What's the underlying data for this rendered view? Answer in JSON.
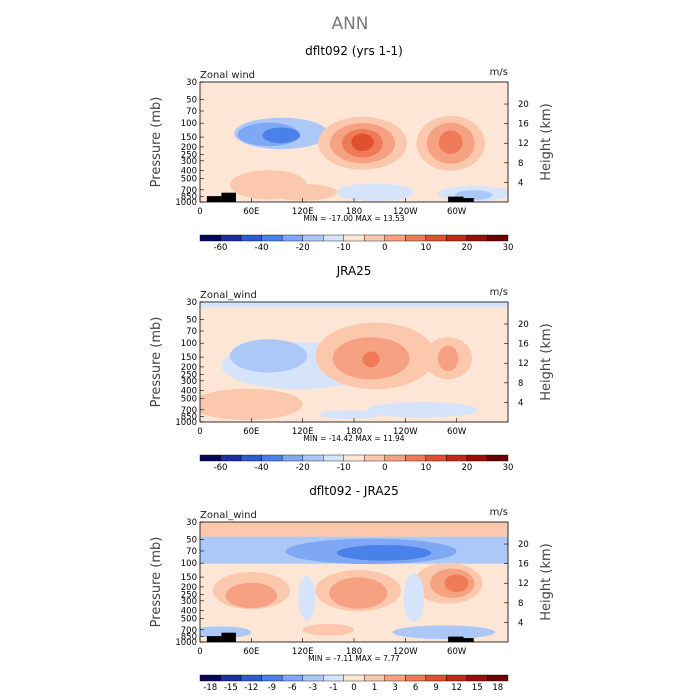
{
  "page": {
    "title": "ANN"
  },
  "chart_data": [
    {
      "type": "heatmap",
      "title": "dflt092 (yrs 1-1)",
      "field_label": "Zonal wind",
      "units": "m/s",
      "ylabel": "Pressure (mb)",
      "y2label": "Height (km)",
      "x_ticks": [
        "0",
        "60E",
        "120E",
        "180",
        "120W",
        "60W"
      ],
      "y_ticks": [
        "30",
        "50",
        "70",
        "100",
        "150",
        "200",
        "250",
        "300",
        "400",
        "500",
        "700",
        "850",
        "1000"
      ],
      "y2_ticks": [
        "20",
        "16",
        "12",
        "8",
        "4"
      ],
      "stats": "MIN = -17.00   MAX = 13.53",
      "colorbar": {
        "labels": [
          "-60",
          "-40",
          "-20",
          "-10",
          "0",
          "10",
          "20",
          "30"
        ],
        "colors": [
          "#08085a",
          "#1e2ea0",
          "#2e5ad0",
          "#4a80ea",
          "#7ea8f4",
          "#abc8f7",
          "#d5e4fa",
          "#fde6d6",
          "#fbc8ae",
          "#f6a282",
          "#ee7a58",
          "#e0502e",
          "#c42816",
          "#961008",
          "#6a0404"
        ]
      },
      "features": [
        {
          "shape": "bg",
          "level": 7
        },
        {
          "shape": "ellipse",
          "cx": 95,
          "cy": 14.0,
          "rx": 55,
          "ry": 3.2,
          "level": 5
        },
        {
          "shape": "ellipse",
          "cx": 80,
          "cy": 13.8,
          "rx": 36,
          "ry": 2.4,
          "level": 4
        },
        {
          "shape": "ellipse",
          "cx": 95,
          "cy": 13.6,
          "rx": 22,
          "ry": 1.6,
          "level": 3
        },
        {
          "shape": "ellipse",
          "cx": 190,
          "cy": 12.0,
          "rx": 52,
          "ry": 5.4,
          "level": 8
        },
        {
          "shape": "ellipse",
          "cx": 190,
          "cy": 12.0,
          "rx": 38,
          "ry": 4.1,
          "level": 9
        },
        {
          "shape": "ellipse",
          "cx": 190,
          "cy": 12.0,
          "rx": 24,
          "ry": 2.9,
          "level": 10
        },
        {
          "shape": "ellipse",
          "cx": 190,
          "cy": 12.2,
          "rx": 13,
          "ry": 1.8,
          "level": 11
        },
        {
          "shape": "ellipse",
          "cx": 293,
          "cy": 12.0,
          "rx": 40,
          "ry": 5.6,
          "level": 8
        },
        {
          "shape": "ellipse",
          "cx": 293,
          "cy": 12.0,
          "rx": 28,
          "ry": 4.2,
          "level": 9
        },
        {
          "shape": "ellipse",
          "cx": 293,
          "cy": 12.2,
          "rx": 14,
          "ry": 2.4,
          "level": 10
        },
        {
          "shape": "ellipse",
          "cx": 80,
          "cy": 3.5,
          "rx": 45,
          "ry": 3.0,
          "level": 8
        },
        {
          "shape": "ellipse",
          "cx": 120,
          "cy": 2.0,
          "rx": 40,
          "ry": 1.7,
          "level": 8
        },
        {
          "shape": "ellipse",
          "cx": 205,
          "cy": 2.0,
          "rx": 45,
          "ry": 1.8,
          "level": 6
        },
        {
          "shape": "ellipse",
          "cx": 320,
          "cy": 1.7,
          "rx": 42,
          "ry": 1.6,
          "level": 6
        },
        {
          "shape": "ellipse",
          "cx": 320,
          "cy": 1.4,
          "rx": 22,
          "ry": 1.0,
          "level": 5
        }
      ],
      "topo": [
        [
          25,
          42,
          1.9
        ],
        [
          8,
          25,
          1.2
        ],
        [
          290,
          308,
          1.1
        ],
        [
          306,
          320,
          0.8
        ]
      ]
    },
    {
      "type": "heatmap",
      "title": "JRA25",
      "field_label": "Zonal_wind",
      "units": "m/s",
      "ylabel": "Pressure (mb)",
      "y2label": "Height (km)",
      "x_ticks": [
        "0",
        "60E",
        "120E",
        "180",
        "120W",
        "60W"
      ],
      "y_ticks": [
        "30",
        "50",
        "70",
        "100",
        "150",
        "200",
        "250",
        "300",
        "400",
        "500",
        "700",
        "850",
        "1000"
      ],
      "y2_ticks": [
        "20",
        "16",
        "12",
        "8",
        "4"
      ],
      "stats": "MIN = -14.42   MAX = 11.94",
      "colorbar": {
        "labels": [
          "-60",
          "-40",
          "-20",
          "-10",
          "0",
          "10",
          "20",
          "30"
        ],
        "colors": [
          "#08085a",
          "#1e2ea0",
          "#2e5ad0",
          "#4a80ea",
          "#7ea8f4",
          "#abc8f7",
          "#d5e4fa",
          "#fde6d6",
          "#fbc8ae",
          "#f6a282",
          "#ee7a58",
          "#e0502e",
          "#c42816",
          "#961008",
          "#6a0404"
        ]
      },
      "features": [
        {
          "shape": "bg",
          "level": 7
        },
        {
          "shape": "band",
          "y0": 23.4,
          "y1": 24.8,
          "level": 6
        },
        {
          "shape": "ellipse",
          "cx": 115,
          "cy": 11.5,
          "rx": 90,
          "ry": 4.8,
          "level": 6
        },
        {
          "shape": "ellipse",
          "cx": 80,
          "cy": 13.5,
          "rx": 45,
          "ry": 3.4,
          "level": 5
        },
        {
          "shape": "ellipse",
          "cx": 205,
          "cy": 13.5,
          "rx": 70,
          "ry": 6.8,
          "level": 8
        },
        {
          "shape": "ellipse",
          "cx": 200,
          "cy": 13.0,
          "rx": 45,
          "ry": 4.3,
          "level": 9
        },
        {
          "shape": "ellipse",
          "cx": 200,
          "cy": 12.8,
          "rx": 10,
          "ry": 1.6,
          "level": 10
        },
        {
          "shape": "ellipse",
          "cx": 290,
          "cy": 13.0,
          "rx": 28,
          "ry": 4.3,
          "level": 8
        },
        {
          "shape": "ellipse",
          "cx": 290,
          "cy": 13.0,
          "rx": 12,
          "ry": 2.6,
          "level": 9
        },
        {
          "shape": "ellipse",
          "cx": 55,
          "cy": 3.6,
          "rx": 65,
          "ry": 3.2,
          "level": 8
        },
        {
          "shape": "ellipse",
          "cx": 260,
          "cy": 2.5,
          "rx": 65,
          "ry": 1.6,
          "level": 6
        },
        {
          "shape": "ellipse",
          "cx": 175,
          "cy": 1.5,
          "rx": 35,
          "ry": 0.9,
          "level": 6
        }
      ],
      "topo": []
    },
    {
      "type": "heatmap",
      "title": "dflt092 - JRA25",
      "field_label": "Zonal_wind",
      "units": "m/s",
      "ylabel": "Pressure (mb)",
      "y2label": "Height (km)",
      "x_ticks": [
        "0",
        "60E",
        "120E",
        "180",
        "120W",
        "60W"
      ],
      "y_ticks": [
        "30",
        "50",
        "70",
        "100",
        "150",
        "200",
        "250",
        "300",
        "400",
        "500",
        "700",
        "850",
        "1000"
      ],
      "y2_ticks": [
        "20",
        "16",
        "12",
        "8",
        "4"
      ],
      "stats": "MIN = -7.11   MAX =  7.77",
      "colorbar": {
        "labels": [
          "-18",
          "-15",
          "-12",
          "-9",
          "-6",
          "-3",
          "-1",
          "0",
          "1",
          "3",
          "6",
          "9",
          "12",
          "15",
          "18"
        ],
        "colors": [
          "#08085a",
          "#1e2ea0",
          "#2e5ad0",
          "#4a80ea",
          "#7ea8f4",
          "#abc8f7",
          "#d5e4fa",
          "#fde6d6",
          "#fbc8ae",
          "#f6a282",
          "#ee7a58",
          "#e0502e",
          "#c42816",
          "#961008",
          "#6a0404"
        ]
      },
      "features": [
        {
          "shape": "bg",
          "level": 7
        },
        {
          "shape": "band",
          "y0": 21.5,
          "y1": 26.0,
          "level": 8
        },
        {
          "shape": "band",
          "y0": 16.0,
          "y1": 21.5,
          "level": 5
        },
        {
          "shape": "ellipse",
          "cx": 200,
          "cy": 18.5,
          "rx": 100,
          "ry": 2.6,
          "level": 4
        },
        {
          "shape": "ellipse",
          "cx": 215,
          "cy": 18.2,
          "rx": 55,
          "ry": 1.6,
          "level": 3
        },
        {
          "shape": "ellipse",
          "cx": 60,
          "cy": 10.5,
          "rx": 45,
          "ry": 3.8,
          "level": 8
        },
        {
          "shape": "ellipse",
          "cx": 60,
          "cy": 9.5,
          "rx": 30,
          "ry": 2.6,
          "level": 9
        },
        {
          "shape": "ellipse",
          "cx": 185,
          "cy": 10.5,
          "rx": 50,
          "ry": 4.2,
          "level": 8
        },
        {
          "shape": "ellipse",
          "cx": 185,
          "cy": 10.0,
          "rx": 34,
          "ry": 3.2,
          "level": 9
        },
        {
          "shape": "ellipse",
          "cx": 290,
          "cy": 12.0,
          "rx": 40,
          "ry": 4.2,
          "level": 8
        },
        {
          "shape": "ellipse",
          "cx": 295,
          "cy": 12.0,
          "rx": 26,
          "ry": 3.0,
          "level": 9
        },
        {
          "shape": "ellipse",
          "cx": 300,
          "cy": 12.0,
          "rx": 14,
          "ry": 1.8,
          "level": 10
        },
        {
          "shape": "ellipse",
          "cx": 125,
          "cy": 9.0,
          "rx": 10,
          "ry": 4.5,
          "level": 6
        },
        {
          "shape": "ellipse",
          "cx": 250,
          "cy": 9.0,
          "rx": 12,
          "ry": 5.0,
          "level": 6
        },
        {
          "shape": "ellipse",
          "cx": 25,
          "cy": 2.0,
          "rx": 35,
          "ry": 1.2,
          "level": 5
        },
        {
          "shape": "ellipse",
          "cx": 285,
          "cy": 2.0,
          "rx": 60,
          "ry": 1.4,
          "level": 5
        },
        {
          "shape": "ellipse",
          "cx": 150,
          "cy": 2.5,
          "rx": 30,
          "ry": 1.2,
          "level": 8
        }
      ],
      "topo": [
        [
          25,
          42,
          1.9
        ],
        [
          8,
          25,
          1.2
        ],
        [
          290,
          308,
          1.1
        ],
        [
          306,
          320,
          0.8
        ]
      ]
    }
  ]
}
